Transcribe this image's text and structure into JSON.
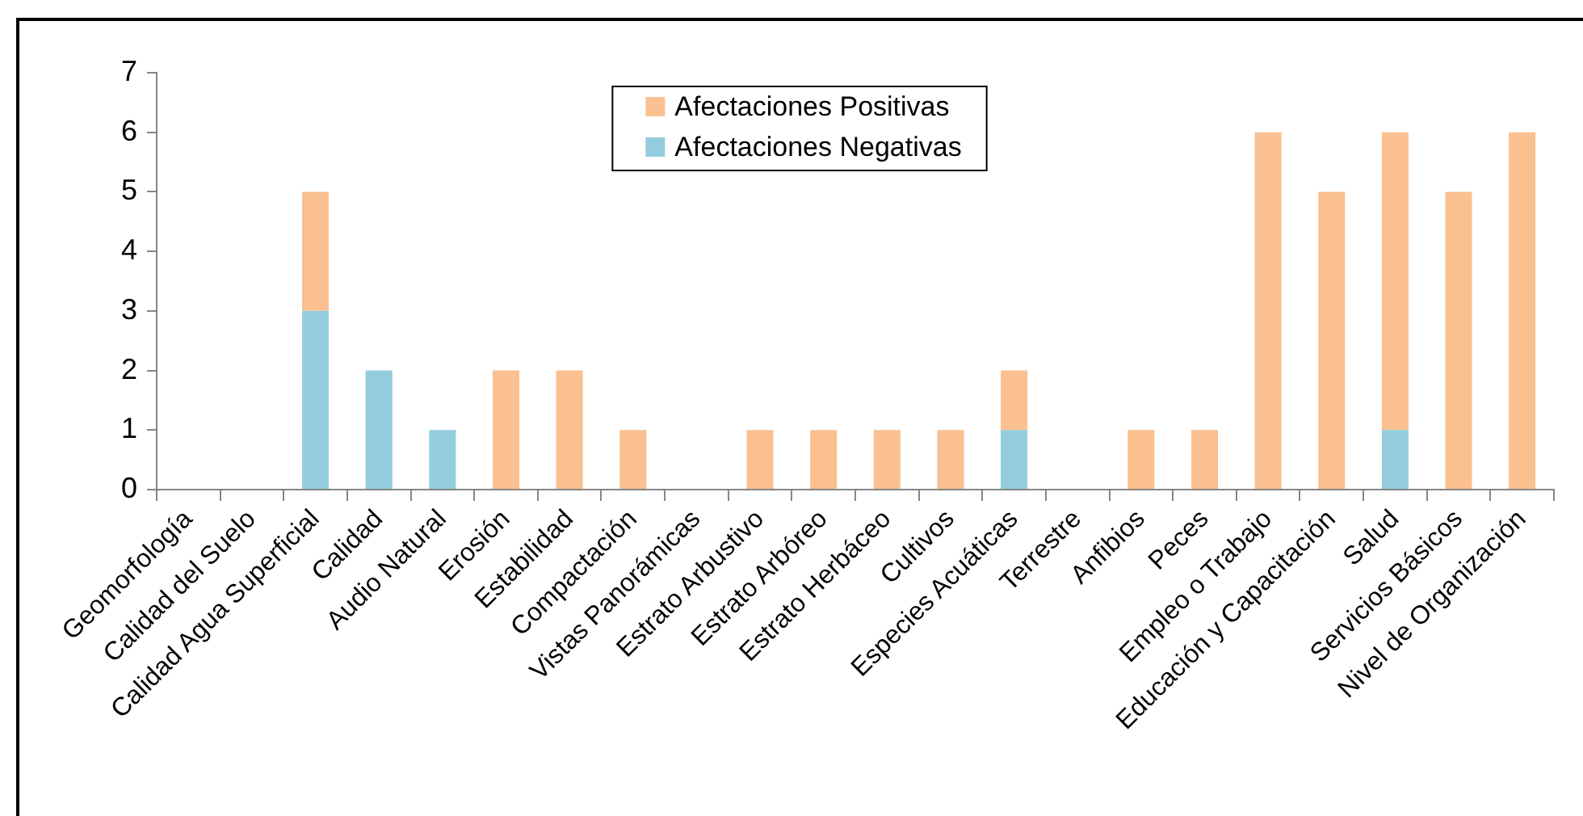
{
  "chart_data": {
    "type": "bar",
    "stacked": true,
    "categories": [
      "Geomorfología",
      "Calidad del Suelo",
      "Calidad Agua Superficial",
      "Calidad",
      "Audio Natural",
      "Erosión",
      "Estabilidad",
      "Compactación",
      "Vistas Panorámicas",
      "Estrato Arbustivo",
      "Estrato Arbóreo",
      "Estrato Herbáceo",
      "Cultivos",
      "Especies Acuáticas",
      "Terrestre",
      "Anfibios",
      "Peces",
      "Empleo o Trabajo",
      "Educación y Capacitación",
      "Salud",
      "Servicios Básicos",
      "Nivel de Organización"
    ],
    "series": [
      {
        "name": "Afectaciones Negativas",
        "color": "#93cddd",
        "values": [
          null,
          null,
          3,
          2,
          1,
          null,
          null,
          null,
          null,
          null,
          null,
          null,
          null,
          1,
          null,
          null,
          null,
          null,
          null,
          1,
          null,
          null
        ]
      },
      {
        "name": "Afectaciones Positivas",
        "color": "#fac090",
        "values": [
          null,
          null,
          2,
          null,
          null,
          2,
          2,
          1,
          null,
          1,
          1,
          1,
          1,
          1,
          null,
          1,
          1,
          6,
          5,
          5,
          5,
          6
        ]
      }
    ],
    "ylim": [
      0,
      7
    ],
    "yticks": [
      0,
      1,
      2,
      3,
      4,
      5,
      6,
      7
    ],
    "legend": "top"
  }
}
